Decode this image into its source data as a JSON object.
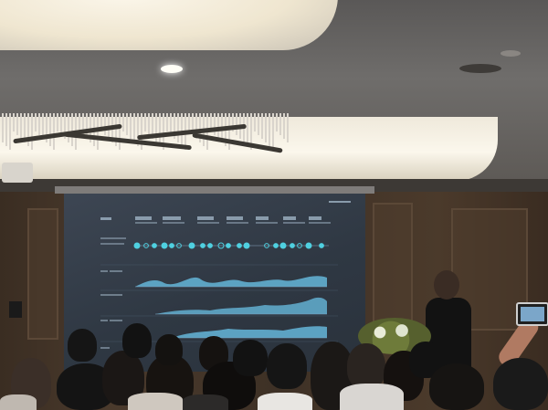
{
  "scene": {
    "description_alt": "",
    "colors": {
      "screen_bg": "#2f3843",
      "accent_cyan": "#4fb6c8",
      "chart_fill": "#5fa9c9",
      "wood": "#4a3a2c"
    }
  }
}
